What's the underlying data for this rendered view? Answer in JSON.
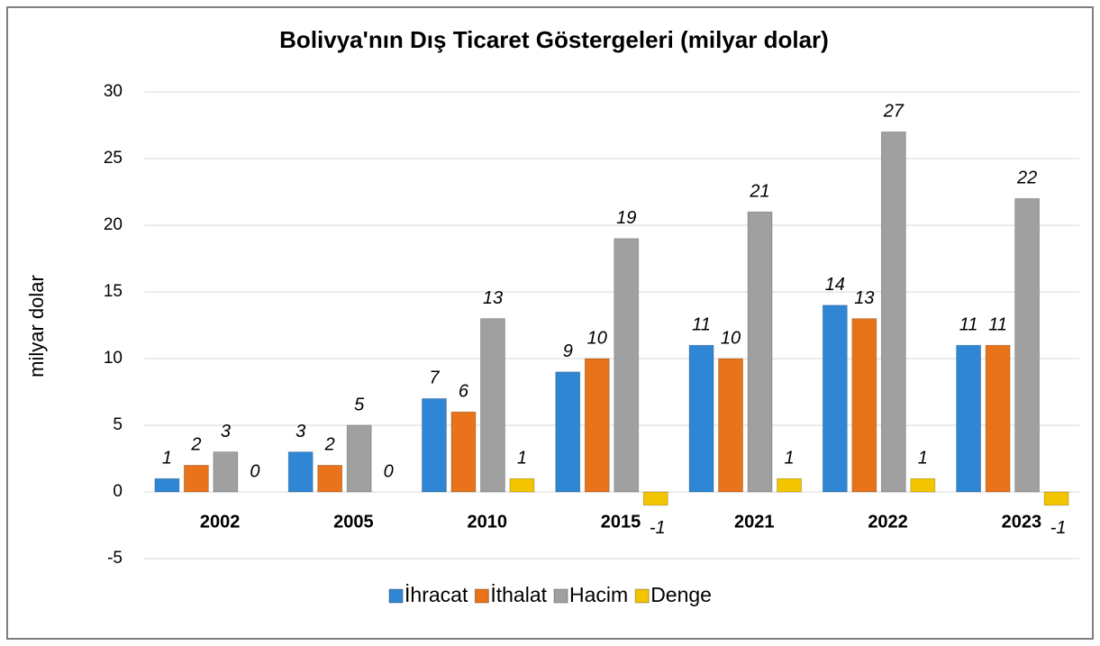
{
  "chart_data": {
    "type": "bar",
    "title": "Bolivya'nın Dış Ticaret Göstergeleri  (milyar dolar)",
    "y_label": "milyar dolar",
    "categories": [
      "2002",
      "2005",
      "2010",
      "2015",
      "2021",
      "2022",
      "2023"
    ],
    "series": [
      {
        "name": "İhracat",
        "color": "#2f86d4",
        "values": [
          1,
          3,
          7,
          9,
          11,
          14,
          11
        ]
      },
      {
        "name": "İthalat",
        "color": "#e8731a",
        "values": [
          2,
          2,
          6,
          10,
          10,
          13,
          11
        ]
      },
      {
        "name": "Hacim",
        "color": "#a0a0a0",
        "values": [
          3,
          5,
          13,
          19,
          21,
          27,
          22
        ]
      },
      {
        "name": "Denge",
        "color": "#f2c500",
        "values": [
          0,
          0,
          1,
          -1,
          1,
          1,
          -1
        ]
      }
    ],
    "ylim": [
      -5,
      30
    ],
    "yticks": [
      -5,
      0,
      5,
      10,
      15,
      20,
      25,
      30
    ],
    "grid": true,
    "legend": "bottom"
  }
}
